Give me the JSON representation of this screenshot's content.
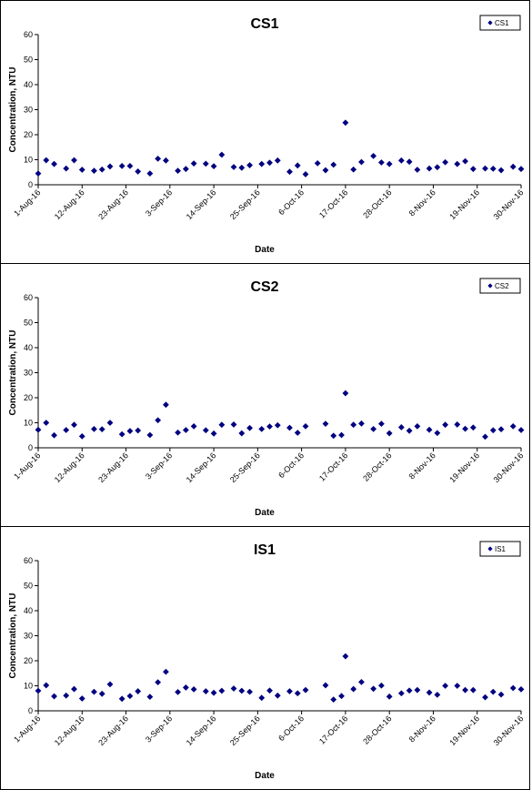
{
  "chart_data": [
    {
      "type": "scatter",
      "title": "CS1",
      "xlabel": "Date",
      "ylabel": "Concentration, NTU",
      "ylim": [
        0,
        60
      ],
      "yticks": [
        "0",
        "10",
        "20",
        "30",
        "40",
        "50",
        "60"
      ],
      "xlim": [
        "2016-08-01",
        "2016-11-30"
      ],
      "xticks": [
        "1-Aug-16",
        "12-Aug-16",
        "23-Aug-16",
        "3-Sep-16",
        "14-Sep-16",
        "25-Sep-16",
        "6-Oct-16",
        "17-Oct-16",
        "28-Oct-16",
        "8-Nov-16",
        "19-Nov-16",
        "30-Nov-16"
      ],
      "grid": false,
      "legend_position": "top-right",
      "series": [
        {
          "name": "CS1",
          "color": "#000080",
          "points": [
            [
              "2016-08-01",
              4.5
            ],
            [
              "2016-08-03",
              9.8
            ],
            [
              "2016-08-05",
              8.3
            ],
            [
              "2016-08-08",
              6.5
            ],
            [
              "2016-08-10",
              9.8
            ],
            [
              "2016-08-12",
              6.0
            ],
            [
              "2016-08-15",
              5.6
            ],
            [
              "2016-08-17",
              6.1
            ],
            [
              "2016-08-19",
              7.3
            ],
            [
              "2016-08-22",
              7.5
            ],
            [
              "2016-08-24",
              7.5
            ],
            [
              "2016-08-26",
              5.3
            ],
            [
              "2016-08-29",
              4.5
            ],
            [
              "2016-08-31",
              10.4
            ],
            [
              "2016-09-02",
              9.7
            ],
            [
              "2016-09-05",
              5.6
            ],
            [
              "2016-09-07",
              6.3
            ],
            [
              "2016-09-09",
              8.5
            ],
            [
              "2016-09-12",
              8.4
            ],
            [
              "2016-09-14",
              7.4
            ],
            [
              "2016-09-16",
              12.0
            ],
            [
              "2016-09-19",
              7.1
            ],
            [
              "2016-09-21",
              6.8
            ],
            [
              "2016-09-23",
              7.8
            ],
            [
              "2016-09-26",
              8.3
            ],
            [
              "2016-09-28",
              8.8
            ],
            [
              "2016-09-30",
              9.7
            ],
            [
              "2016-10-03",
              5.2
            ],
            [
              "2016-10-05",
              7.7
            ],
            [
              "2016-10-07",
              4.2
            ],
            [
              "2016-10-10",
              8.6
            ],
            [
              "2016-10-12",
              5.8
            ],
            [
              "2016-10-14",
              8.0
            ],
            [
              "2016-10-17",
              24.8
            ],
            [
              "2016-10-19",
              6.1
            ],
            [
              "2016-10-21",
              9.1
            ],
            [
              "2016-10-24",
              11.5
            ],
            [
              "2016-10-26",
              8.9
            ],
            [
              "2016-10-28",
              8.3
            ],
            [
              "2016-10-31",
              9.7
            ],
            [
              "2016-11-02",
              9.2
            ],
            [
              "2016-11-04",
              6.0
            ],
            [
              "2016-11-07",
              6.5
            ],
            [
              "2016-11-09",
              7.0
            ],
            [
              "2016-11-11",
              9.0
            ],
            [
              "2016-11-14",
              8.3
            ],
            [
              "2016-11-16",
              9.4
            ],
            [
              "2016-11-18",
              6.3
            ],
            [
              "2016-11-21",
              6.5
            ],
            [
              "2016-11-23",
              6.4
            ],
            [
              "2016-11-25",
              5.8
            ],
            [
              "2016-11-28",
              7.2
            ],
            [
              "2016-11-30",
              6.3
            ]
          ]
        }
      ]
    },
    {
      "type": "scatter",
      "title": "CS2",
      "xlabel": "Date",
      "ylabel": "Concentration, NTU",
      "ylim": [
        0,
        60
      ],
      "yticks": [
        "0",
        "10",
        "20",
        "30",
        "40",
        "50",
        "60"
      ],
      "xlim": [
        "2016-08-01",
        "2016-11-30"
      ],
      "xticks": [
        "1-Aug-16",
        "12-Aug-16",
        "23-Aug-16",
        "3-Sep-16",
        "14-Sep-16",
        "25-Sep-16",
        "6-Oct-16",
        "17-Oct-16",
        "28-Oct-16",
        "8-Nov-16",
        "19-Nov-16",
        "30-Nov-16"
      ],
      "grid": false,
      "legend_position": "top-right",
      "series": [
        {
          "name": "CS2",
          "color": "#000080",
          "points": [
            [
              "2016-08-01",
              7.2
            ],
            [
              "2016-08-03",
              10.0
            ],
            [
              "2016-08-05",
              5.0
            ],
            [
              "2016-08-08",
              7.1
            ],
            [
              "2016-08-10",
              9.2
            ],
            [
              "2016-08-12",
              4.6
            ],
            [
              "2016-08-15",
              7.5
            ],
            [
              "2016-08-17",
              7.4
            ],
            [
              "2016-08-19",
              10.0
            ],
            [
              "2016-08-22",
              5.4
            ],
            [
              "2016-08-24",
              6.7
            ],
            [
              "2016-08-26",
              6.9
            ],
            [
              "2016-08-29",
              5.1
            ],
            [
              "2016-08-31",
              11.0
            ],
            [
              "2016-09-02",
              17.2
            ],
            [
              "2016-09-05",
              6.1
            ],
            [
              "2016-09-07",
              7.1
            ],
            [
              "2016-09-09",
              8.6
            ],
            [
              "2016-09-12",
              7.0
            ],
            [
              "2016-09-14",
              5.7
            ],
            [
              "2016-09-16",
              9.2
            ],
            [
              "2016-09-19",
              9.3
            ],
            [
              "2016-09-21",
              5.8
            ],
            [
              "2016-09-23",
              7.9
            ],
            [
              "2016-09-26",
              7.5
            ],
            [
              "2016-09-28",
              8.5
            ],
            [
              "2016-09-30",
              9.0
            ],
            [
              "2016-10-03",
              8.0
            ],
            [
              "2016-10-05",
              6.0
            ],
            [
              "2016-10-07",
              8.6
            ],
            [
              "2016-10-12",
              9.6
            ],
            [
              "2016-10-14",
              4.8
            ],
            [
              "2016-10-16",
              5.1
            ],
            [
              "2016-10-17",
              21.8
            ],
            [
              "2016-10-19",
              9.2
            ],
            [
              "2016-10-21",
              9.7
            ],
            [
              "2016-10-24",
              7.5
            ],
            [
              "2016-10-26",
              9.6
            ],
            [
              "2016-10-28",
              5.8
            ],
            [
              "2016-10-31",
              8.2
            ],
            [
              "2016-11-02",
              6.8
            ],
            [
              "2016-11-04",
              8.6
            ],
            [
              "2016-11-07",
              7.2
            ],
            [
              "2016-11-09",
              5.9
            ],
            [
              "2016-11-11",
              9.2
            ],
            [
              "2016-11-14",
              9.3
            ],
            [
              "2016-11-16",
              7.6
            ],
            [
              "2016-11-18",
              8.1
            ],
            [
              "2016-11-21",
              4.4
            ],
            [
              "2016-11-23",
              7.0
            ],
            [
              "2016-11-25",
              7.4
            ],
            [
              "2016-11-28",
              8.6
            ],
            [
              "2016-11-30",
              7.1
            ]
          ]
        }
      ]
    },
    {
      "type": "scatter",
      "title": "IS1",
      "xlabel": "Date",
      "ylabel": "Concentration, NTU",
      "ylim": [
        0,
        60
      ],
      "yticks": [
        "0",
        "10",
        "20",
        "30",
        "40",
        "50",
        "60"
      ],
      "xlim": [
        "2016-08-01",
        "2016-11-30"
      ],
      "xticks": [
        "1-Aug-16",
        "12-Aug-16",
        "23-Aug-16",
        "3-Sep-16",
        "14-Sep-16",
        "25-Sep-16",
        "6-Oct-16",
        "17-Oct-16",
        "28-Oct-16",
        "8-Nov-16",
        "19-Nov-16",
        "30-Nov-16"
      ],
      "grid": false,
      "legend_position": "top-right",
      "series": [
        {
          "name": "IS1",
          "color": "#000080",
          "points": [
            [
              "2016-08-01",
              8.0
            ],
            [
              "2016-08-03",
              10.2
            ],
            [
              "2016-08-05",
              5.8
            ],
            [
              "2016-08-08",
              6.1
            ],
            [
              "2016-08-10",
              8.7
            ],
            [
              "2016-08-12",
              4.9
            ],
            [
              "2016-08-15",
              7.6
            ],
            [
              "2016-08-17",
              6.8
            ],
            [
              "2016-08-19",
              10.6
            ],
            [
              "2016-08-22",
              4.8
            ],
            [
              "2016-08-24",
              5.9
            ],
            [
              "2016-08-26",
              7.8
            ],
            [
              "2016-08-29",
              5.6
            ],
            [
              "2016-08-31",
              11.4
            ],
            [
              "2016-09-02",
              15.6
            ],
            [
              "2016-09-05",
              7.5
            ],
            [
              "2016-09-07",
              9.3
            ],
            [
              "2016-09-09",
              8.6
            ],
            [
              "2016-09-12",
              7.8
            ],
            [
              "2016-09-14",
              7.2
            ],
            [
              "2016-09-16",
              8.0
            ],
            [
              "2016-09-19",
              8.9
            ],
            [
              "2016-09-21",
              8.0
            ],
            [
              "2016-09-23",
              7.6
            ],
            [
              "2016-09-26",
              5.2
            ],
            [
              "2016-09-28",
              8.1
            ],
            [
              "2016-09-30",
              6.1
            ],
            [
              "2016-10-03",
              7.8
            ],
            [
              "2016-10-05",
              7.0
            ],
            [
              "2016-10-07",
              8.3
            ],
            [
              "2016-10-12",
              10.2
            ],
            [
              "2016-10-14",
              4.5
            ],
            [
              "2016-10-16",
              5.9
            ],
            [
              "2016-10-17",
              21.8
            ],
            [
              "2016-10-19",
              8.7
            ],
            [
              "2016-10-21",
              11.5
            ],
            [
              "2016-10-24",
              8.8
            ],
            [
              "2016-10-26",
              10.1
            ],
            [
              "2016-10-28",
              5.7
            ],
            [
              "2016-10-31",
              7.0
            ],
            [
              "2016-11-02",
              8.1
            ],
            [
              "2016-11-04",
              8.3
            ],
            [
              "2016-11-07",
              7.3
            ],
            [
              "2016-11-09",
              6.4
            ],
            [
              "2016-11-11",
              10.0
            ],
            [
              "2016-11-14",
              10.0
            ],
            [
              "2016-11-16",
              8.3
            ],
            [
              "2016-11-18",
              8.3
            ],
            [
              "2016-11-21",
              5.4
            ],
            [
              "2016-11-23",
              7.6
            ],
            [
              "2016-11-25",
              6.5
            ],
            [
              "2016-11-28",
              9.1
            ],
            [
              "2016-11-30",
              8.6
            ]
          ]
        }
      ]
    }
  ]
}
